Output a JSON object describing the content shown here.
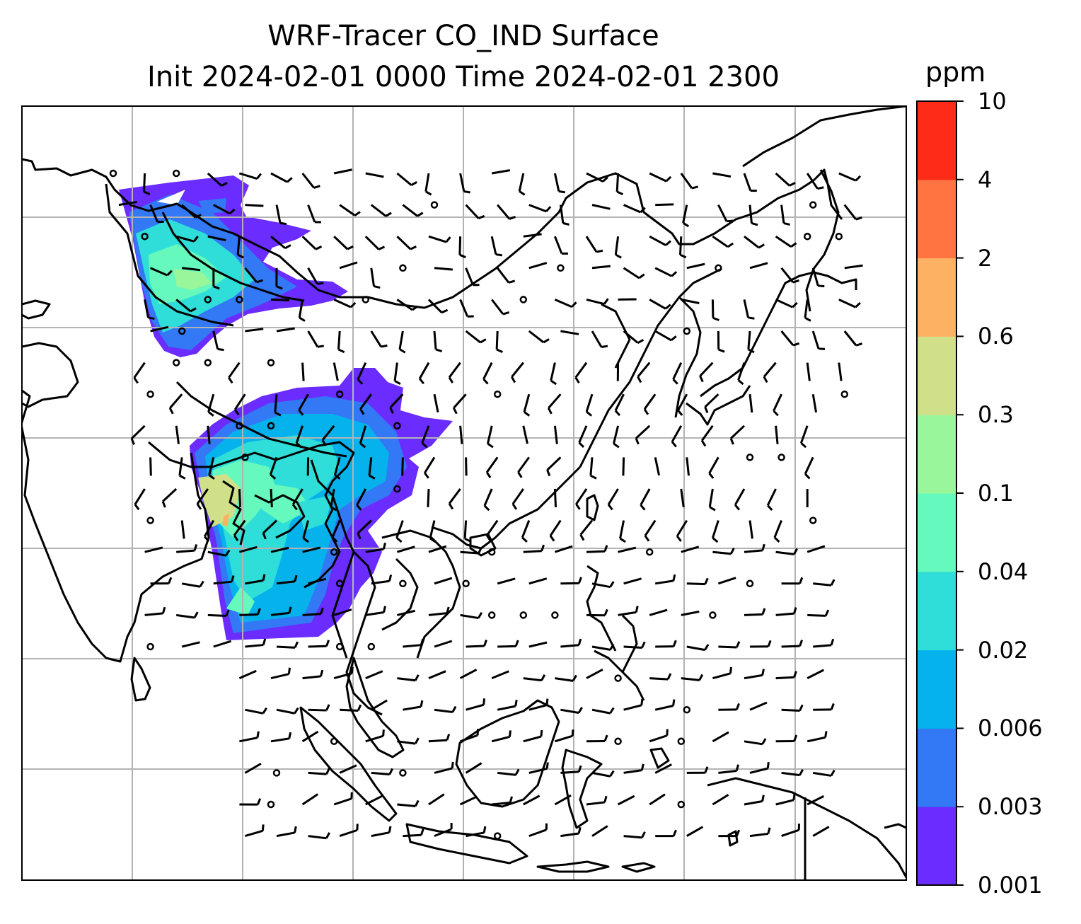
{
  "title": {
    "line1": "WRF-Tracer CO_IND Surface",
    "line2": "Init 2024-02-01 0000 Time 2024-02-01 2300"
  },
  "colorbar": {
    "unit": "ppm",
    "levels": [
      "0.001",
      "0.003",
      "0.006",
      "0.02",
      "0.04",
      "0.1",
      "0.3",
      "0.6",
      "2",
      "4",
      "10"
    ],
    "colors": [
      "#6a2cff",
      "#3378f5",
      "#06b2ec",
      "#2fded8",
      "#66f9bd",
      "#9af69a",
      "#cfe089",
      "#fdb263",
      "#ff7440",
      "#fe2b18"
    ]
  },
  "map": {
    "land_outline_color": "#000000",
    "gridline_color": "#b3b3b3",
    "wind_barb_color": "#000000",
    "calm_marker": "circle"
  }
}
